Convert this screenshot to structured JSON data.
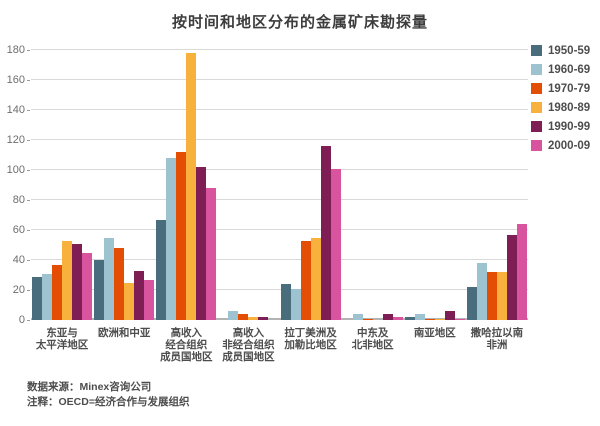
{
  "title": "按时间和地区分布的金属矿床勘探量",
  "footer": {
    "source": "数据来源：Minex咨询公司",
    "note": "注释：OECD=经济合作与发展组织"
  },
  "chart_data": {
    "type": "bar",
    "title": "按时间和地区分布的金属矿床勘探量",
    "categories": [
      "东亚与\n太平洋地区",
      "欧洲和中亚",
      "高收入\n经合组织\n成员国地区",
      "高收入\n非经合组织\n成员国地区",
      "拉丁美洲及\n加勒比地区",
      "中东及\n北非地区",
      "南亚地区",
      "撒哈拉以南\n非洲"
    ],
    "series": [
      {
        "name": "1950-59",
        "color": "#4a6d7d",
        "values": [
          29,
          40,
          67,
          0,
          24,
          0,
          2,
          22
        ]
      },
      {
        "name": "1960-69",
        "color": "#9dc3d1",
        "values": [
          31,
          55,
          108,
          6,
          21,
          4,
          4,
          38
        ]
      },
      {
        "name": "1970-79",
        "color": "#e44d04",
        "values": [
          37,
          48,
          112,
          4,
          53,
          1,
          1,
          32
        ]
      },
      {
        "name": "1980-89",
        "color": "#f9b13e",
        "values": [
          53,
          25,
          178,
          2,
          55,
          0,
          1,
          32
        ]
      },
      {
        "name": "1990-99",
        "color": "#7e1e55",
        "values": [
          51,
          33,
          102,
          2,
          116,
          4,
          6,
          57
        ]
      },
      {
        "name": "2000-09",
        "color": "#d9549e",
        "values": [
          45,
          27,
          88,
          0,
          101,
          2,
          1,
          64
        ]
      }
    ],
    "xlabel": "",
    "ylabel": "",
    "ylim": [
      0,
      180
    ],
    "ytick_step": 20,
    "grid": true,
    "legend_position": "right"
  }
}
